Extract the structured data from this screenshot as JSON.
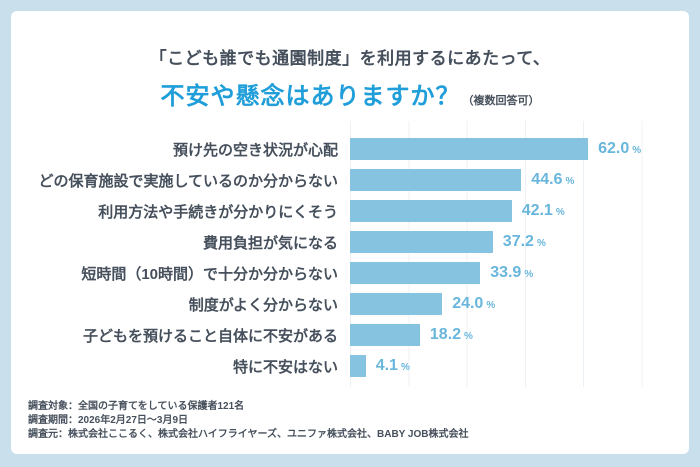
{
  "header": {
    "title_line1": "「こども誰でも通園制度」を利用するにあたって、",
    "title_line2": "不安や懸念はありますか？",
    "note": "（複数回答可）"
  },
  "chart_data": {
    "type": "bar",
    "orientation": "horizontal",
    "title": "「こども誰でも通園制度」を利用するにあたって、不安や懸念はありますか？（複数回答可）",
    "categories": [
      "預け先の空き状況が心配",
      "どの保育施設で実施しているのか分からない",
      "利用方法や手続きが分かりにくそう",
      "費用負担が気になる",
      "短時間（10時間）で十分か分からない",
      "制度がよく分からない",
      "子どもを預けること自体に不安がある",
      "特に不安はない"
    ],
    "values": [
      62.0,
      44.6,
      42.1,
      37.2,
      33.9,
      24.0,
      18.2,
      4.1
    ],
    "unit": "%",
    "xlim": [
      0,
      100
    ],
    "grid": true,
    "legend": false,
    "bar_color": "#85c3e1",
    "value_label_color": "#68b6dc"
  },
  "footer": {
    "line1": "調査対象：全国の子育てをしている保護者121名",
    "line2": "調査期間：2026年2月27日～3月9日",
    "line3": "調査元：株式会社ここるく、株式会社ハイフライヤーズ、ユニファ株式会社、BABY JOB株式会社"
  },
  "colors": {
    "frame_background": "#c9dfec",
    "card_background": "#ffffff",
    "title_accent": "#1f9ed9",
    "text_dark": "#46505c",
    "bar": "#85c3e1",
    "value_label": "#68b6dc",
    "gridline": "#ecf1f6"
  }
}
